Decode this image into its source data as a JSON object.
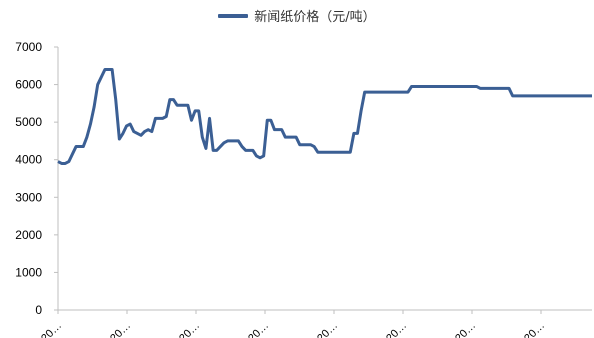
{
  "chart_data": {
    "type": "line",
    "legend_position": "top-center",
    "grid": false,
    "series": [
      {
        "name": "新闻纸价格（元/吨）",
        "color": "#3B5F94",
        "values": [
          3950,
          3900,
          3900,
          3950,
          4150,
          4350,
          4350,
          4350,
          4600,
          4950,
          5400,
          6000,
          6200,
          6400,
          6400,
          6400,
          5600,
          4550,
          4700,
          4900,
          4950,
          4750,
          4700,
          4650,
          4750,
          4800,
          4750,
          5100,
          5100,
          5100,
          5150,
          5600,
          5600,
          5450,
          5450,
          5450,
          5450,
          5050,
          5300,
          5300,
          4600,
          4300,
          5100,
          4250,
          4250,
          4350,
          4450,
          4500,
          4500,
          4500,
          4500,
          4350,
          4250,
          4250,
          4250,
          4100,
          4050,
          4100,
          5050,
          5050,
          4800,
          4800,
          4800,
          4600,
          4600,
          4600,
          4600,
          4400,
          4400,
          4400,
          4400,
          4350,
          4200,
          4200,
          4200,
          4200,
          4200,
          4200,
          4200,
          4200,
          4200,
          4200,
          4700,
          4700,
          5300,
          5800,
          5800,
          5800,
          5800,
          5800,
          5800,
          5800,
          5800,
          5800,
          5800,
          5800,
          5800,
          5800,
          5950,
          5950,
          5950,
          5950,
          5950,
          5950,
          5950,
          5950,
          5950,
          5950,
          5950,
          5950,
          5950,
          5950,
          5950,
          5950,
          5950,
          5950,
          5950,
          5900,
          5900,
          5900,
          5900,
          5900,
          5900,
          5900,
          5900,
          5900,
          5700,
          5700,
          5700,
          5700,
          5700,
          5700,
          5700,
          5700,
          5700,
          5700,
          5700,
          5700,
          5700,
          5700,
          5700,
          5700,
          5700,
          5700,
          5700,
          5700,
          5700,
          5700,
          5700
        ]
      }
    ],
    "ylim": [
      0,
      7000
    ],
    "yticks": [
      "0",
      "1000",
      "2000",
      "3000",
      "4000",
      "5000",
      "6000",
      "7000"
    ],
    "xticks": [
      "20…",
      "20…",
      "20…",
      "20…",
      "20…",
      "20…",
      "20…",
      "20…"
    ],
    "xlabel": "",
    "ylabel": ""
  }
}
